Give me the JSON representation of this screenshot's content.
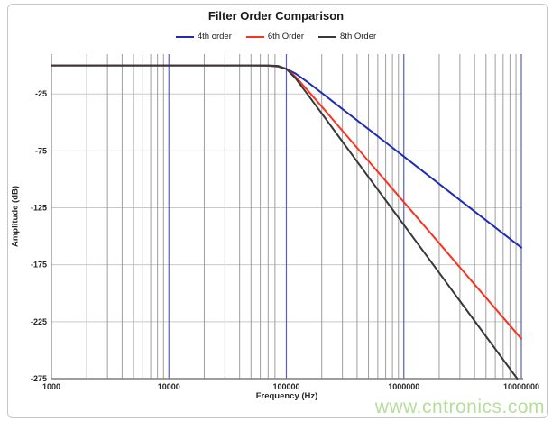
{
  "title": "Filter Order Comparison",
  "watermark": "www.cntronics.com",
  "colors": {
    "series_blue": "#1F2DB4",
    "series_red": "#F8331F",
    "series_black": "#383838",
    "major_grid": "#5560BE",
    "minor_grid": "#9e9e9e",
    "h_grid": "#c9c9c9",
    "axis_line": "#7f7f7f",
    "tick_text": "#262626"
  },
  "chart_data": {
    "type": "line",
    "title": "Filter Order Comparison",
    "xlabel": "Frequency (Hz)",
    "ylabel": "Amplitude (dB)",
    "x_scale": "log",
    "xlim": [
      1000,
      10000000
    ],
    "ylim": [
      -275,
      10
    ],
    "x_ticks": [
      1000,
      10000,
      100000,
      1000000,
      10000000
    ],
    "x_tick_labels": [
      "1000",
      "10000",
      "100000",
      "1000000",
      "10000000"
    ],
    "x_major_gridlines": [
      10000,
      100000,
      1000000,
      10000000
    ],
    "x_minor_ticks": [
      2000,
      3000,
      4000,
      5000,
      6000,
      7000,
      8000,
      9000,
      20000,
      30000,
      40000,
      50000,
      60000,
      70000,
      80000,
      90000,
      200000,
      300000,
      400000,
      500000,
      600000,
      700000,
      800000,
      900000,
      2000000,
      3000000,
      4000000,
      5000000,
      6000000,
      7000000,
      8000000,
      9000000
    ],
    "y_ticks": [
      -25,
      -75,
      -125,
      -175,
      -225,
      -275
    ],
    "grid": true,
    "legend_position": "top",
    "cutoff_hz": 100000,
    "series": [
      {
        "name": "4th order",
        "color": "#1F2DB4",
        "rolloff_db_per_decade": 80,
        "points": [
          [
            1000,
            0
          ],
          [
            2000,
            0
          ],
          [
            5000,
            0
          ],
          [
            10000,
            0
          ],
          [
            20000,
            0
          ],
          [
            50000,
            0
          ],
          [
            70000,
            -0.2
          ],
          [
            85000,
            -1.0
          ],
          [
            100000,
            -3.0
          ],
          [
            120000,
            -7.2
          ],
          [
            150000,
            -14.2
          ],
          [
            200000,
            -24.1
          ],
          [
            300000,
            -38.2
          ],
          [
            500000,
            -55.9
          ],
          [
            700000,
            -67.6
          ],
          [
            1000000,
            -80.0
          ],
          [
            2000000,
            -104.1
          ],
          [
            3000000,
            -118.2
          ],
          [
            5000000,
            -135.9
          ],
          [
            7000000,
            -147.6
          ],
          [
            10000000,
            -160.0
          ]
        ]
      },
      {
        "name": "6th Order",
        "color": "#F8331F",
        "rolloff_db_per_decade": 120,
        "points": [
          [
            1000,
            0
          ],
          [
            2000,
            0
          ],
          [
            5000,
            0
          ],
          [
            10000,
            0
          ],
          [
            20000,
            0
          ],
          [
            50000,
            0
          ],
          [
            70000,
            -0.1
          ],
          [
            85000,
            -0.6
          ],
          [
            100000,
            -3.0
          ],
          [
            120000,
            -10.0
          ],
          [
            150000,
            -21.2
          ],
          [
            200000,
            -36.1
          ],
          [
            300000,
            -57.3
          ],
          [
            500000,
            -83.9
          ],
          [
            700000,
            -101.4
          ],
          [
            1000000,
            -120.0
          ],
          [
            2000000,
            -156.1
          ],
          [
            3000000,
            -177.3
          ],
          [
            5000000,
            -203.9
          ],
          [
            7000000,
            -221.4
          ],
          [
            10000000,
            -240.0
          ]
        ]
      },
      {
        "name": "8th Order",
        "color": "#383838",
        "rolloff_db_per_decade": 140,
        "points": [
          [
            1000,
            0
          ],
          [
            2000,
            0
          ],
          [
            5000,
            0
          ],
          [
            10000,
            0
          ],
          [
            20000,
            0
          ],
          [
            50000,
            0
          ],
          [
            70000,
            0
          ],
          [
            85000,
            -0.4
          ],
          [
            100000,
            -3.0
          ],
          [
            120000,
            -11.4
          ],
          [
            150000,
            -24.7
          ],
          [
            200000,
            -42.1
          ],
          [
            300000,
            -66.8
          ],
          [
            500000,
            -97.9
          ],
          [
            700000,
            -118.3
          ],
          [
            1000000,
            -140.0
          ],
          [
            2000000,
            -182.1
          ],
          [
            3000000,
            -206.8
          ],
          [
            5000000,
            -237.9
          ],
          [
            7000000,
            -258.3
          ],
          [
            10000000,
            -280.0
          ]
        ]
      }
    ]
  }
}
